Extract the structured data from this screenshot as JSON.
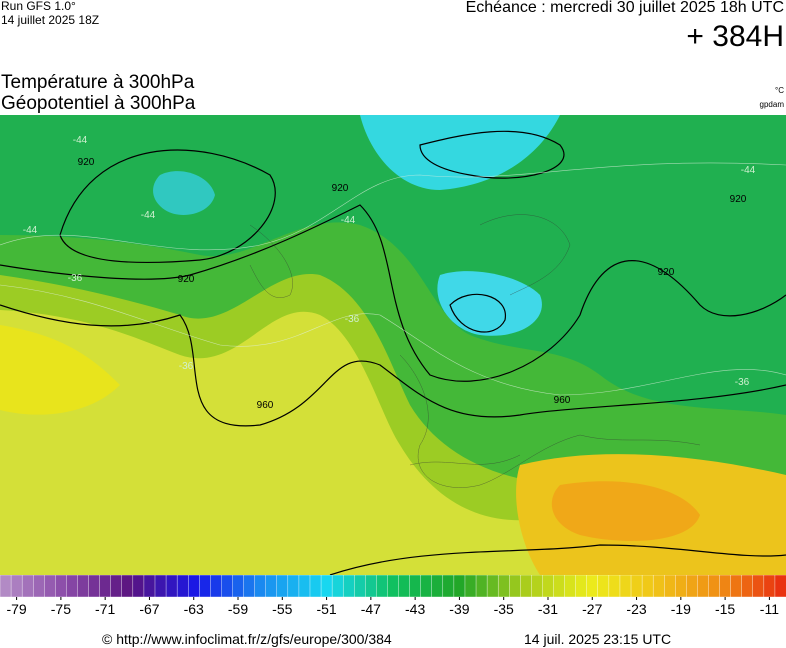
{
  "header": {
    "run": "Run GFS 1.0°",
    "run_date": "14 juillet 2025 18Z",
    "valid": "Echéance : mercredi 30 juillet 2025 18h UTC",
    "lead": "+ 384H"
  },
  "titles": [
    "Température à 300hPa",
    "Géopotentiel à 300hPa"
  ],
  "units": [
    "°C",
    "gpdam"
  ],
  "map": {
    "contour_labels": [
      "920",
      "920",
      "920",
      "920",
      "920",
      "960",
      "960",
      "-44",
      "-44",
      "-44",
      "-44",
      "-44",
      "-36",
      "-36",
      "-36",
      "-36"
    ]
  },
  "colorbar": {
    "range": [
      -80,
      -9
    ],
    "ticks": [
      -79,
      -75,
      -71,
      -67,
      -63,
      -59,
      -55,
      -51,
      -47,
      -43,
      -39,
      -35,
      -31,
      -27,
      -23,
      -19,
      -15,
      -11
    ],
    "colors": [
      "#b690c8",
      "#8a4aa8",
      "#5a1480",
      "#1818e8",
      "#1a8cf0",
      "#18d8f0",
      "#10c060",
      "#20a628",
      "#a8cc1c",
      "#ecec1c",
      "#f0c418",
      "#f08c14",
      "#e82a10"
    ]
  },
  "footer": {
    "url": "© http://www.infoclimat.fr/z/gfs/europe/300/384",
    "timestamp": "14 juil. 2025 23:15 UTC"
  }
}
